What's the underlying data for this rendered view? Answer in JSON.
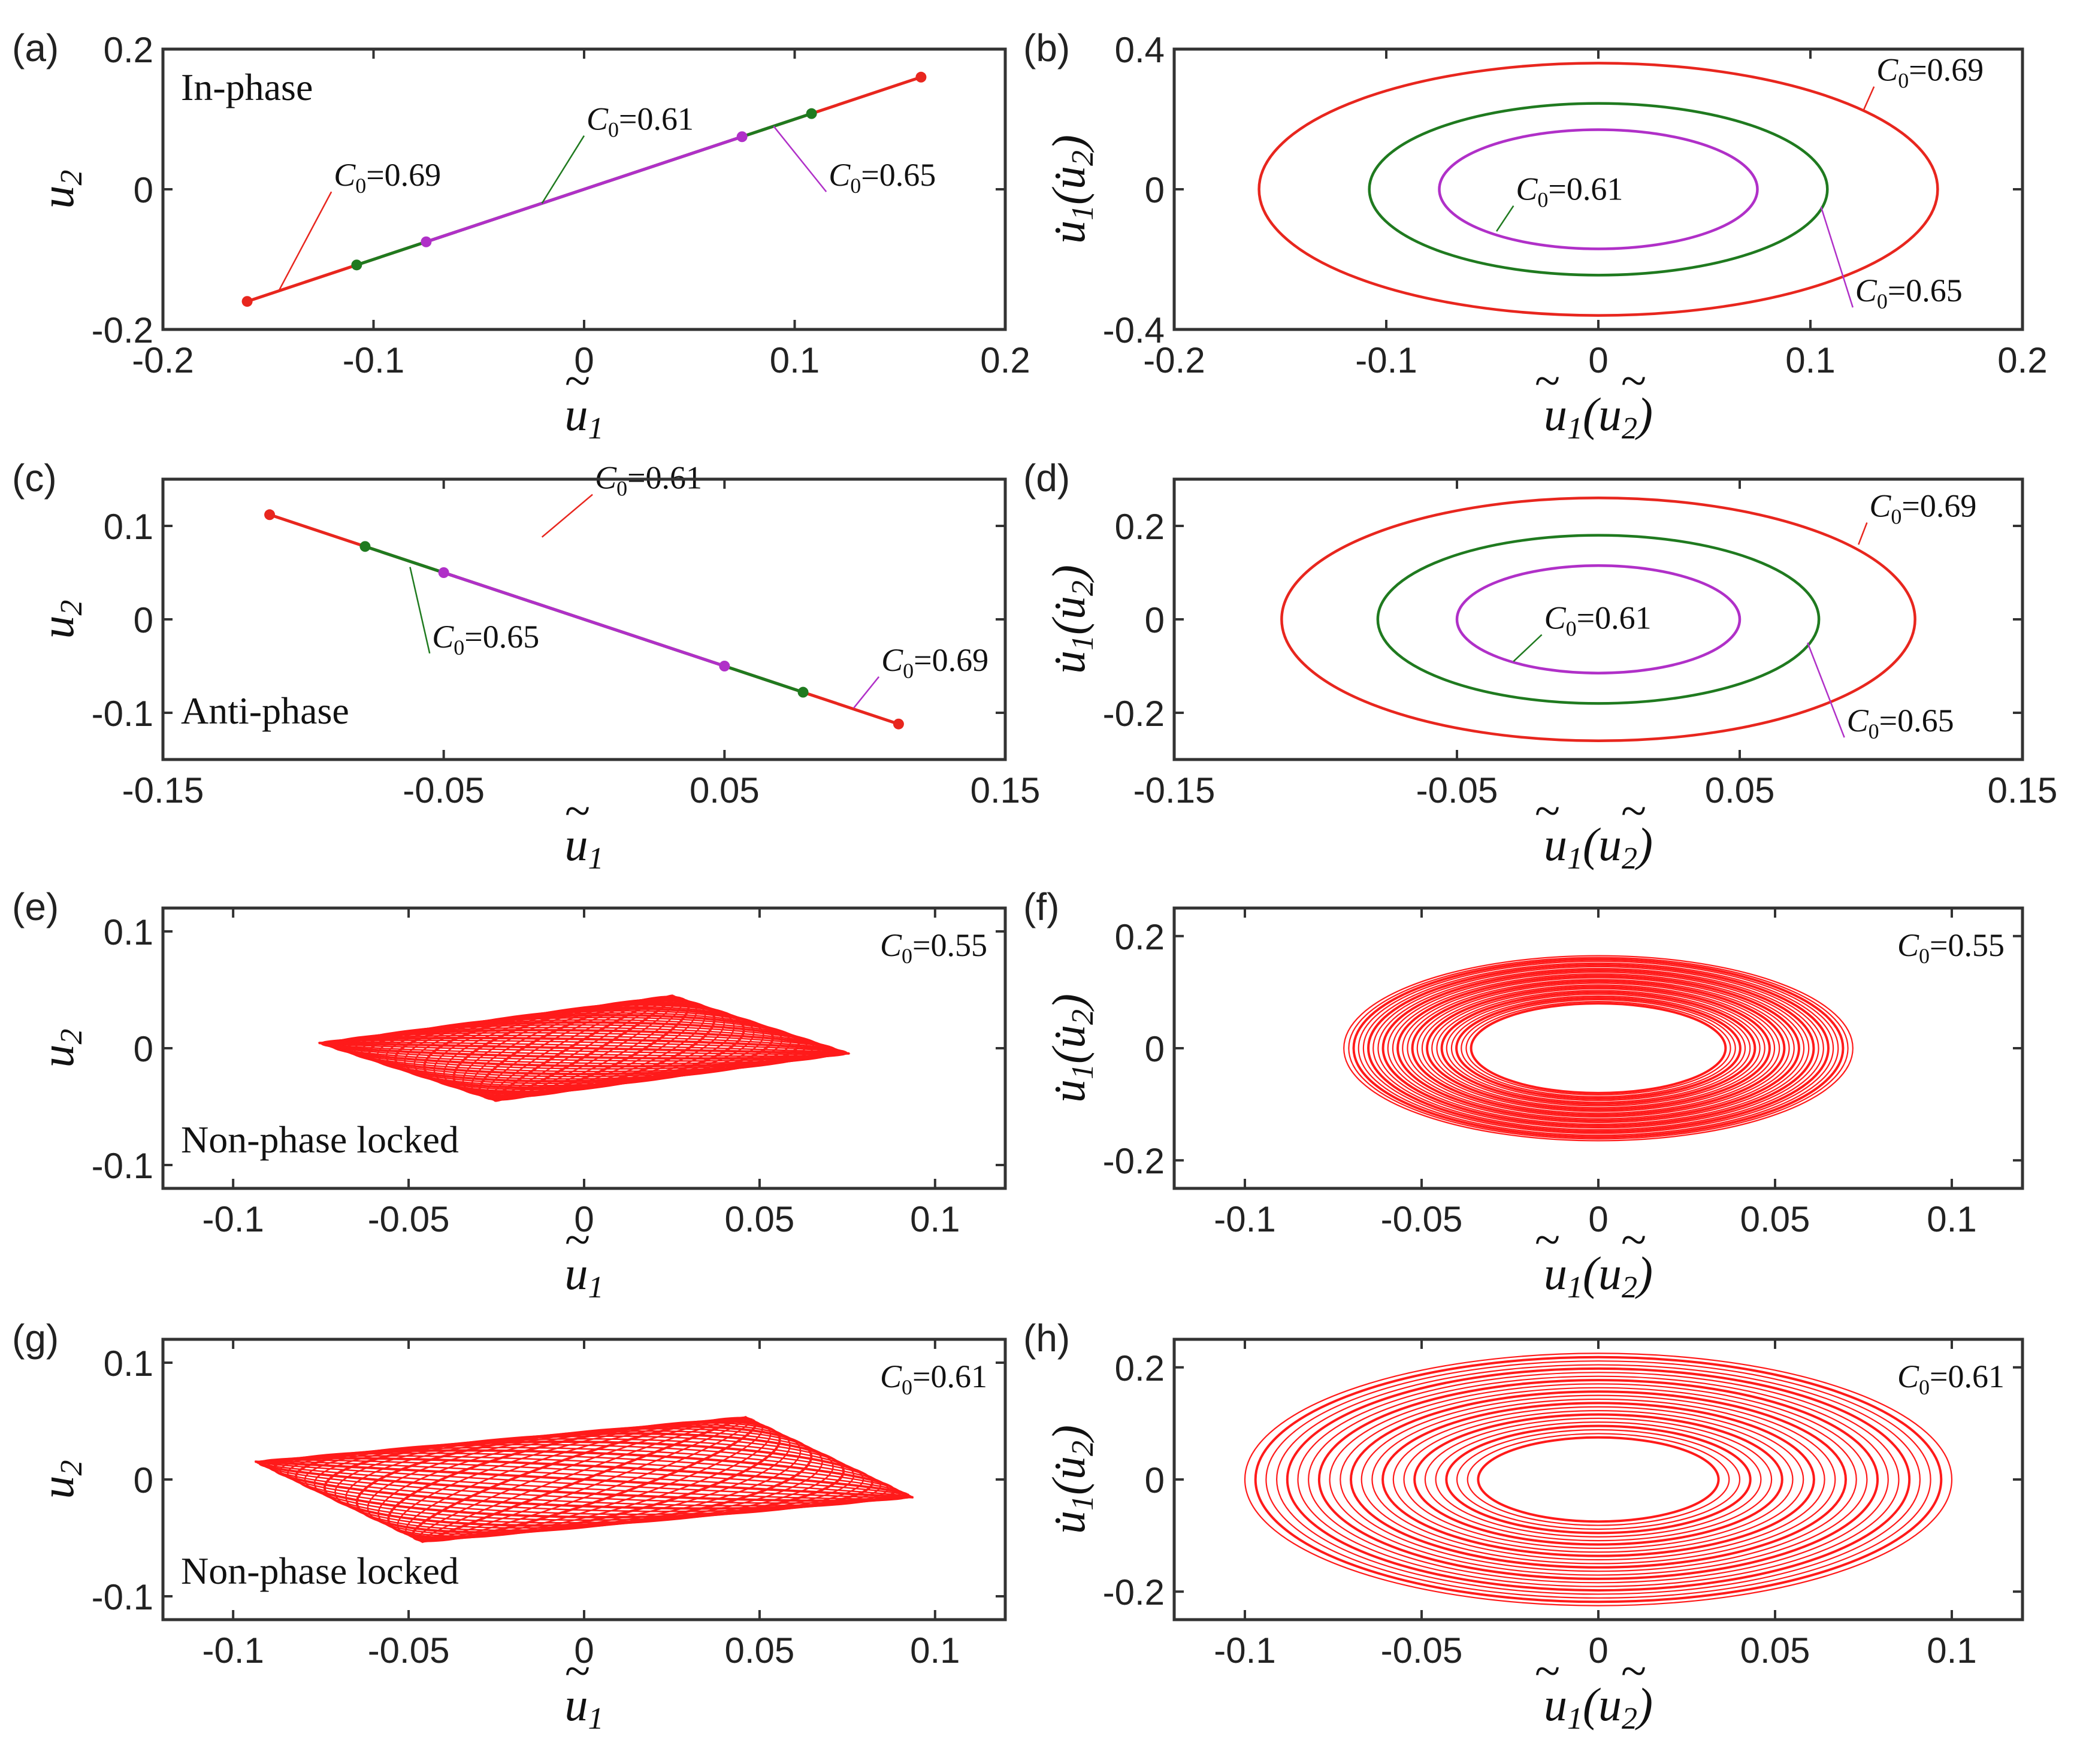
{
  "chart_data": [
    {
      "id": "a",
      "panel_label": "(a)",
      "type": "line",
      "note": "In-phase",
      "xlim": [
        -0.2,
        0.2
      ],
      "ylim": [
        -0.2,
        0.2
      ],
      "xticks": [
        "-0.2",
        "-0.1",
        "0",
        "0.1",
        "0.2"
      ],
      "yticks": [
        "-0.2",
        "0",
        "0.2"
      ],
      "xlabel_var": "u",
      "xlabel_sub": "1",
      "xlabel_paren": "",
      "ylabel_var": "u",
      "ylabel_sub": "2",
      "ylabel_paren": "",
      "series": [
        {
          "label": "C0=0.69",
          "color": "#e8261e",
          "x": [
            -0.16,
            0.16
          ],
          "y": [
            -0.16,
            0.16
          ],
          "markers": true
        },
        {
          "label": "C0=0.65",
          "color": "#1f7a1f",
          "x": [
            -0.108,
            0.108
          ],
          "y": [
            -0.108,
            0.108
          ],
          "markers": true
        },
        {
          "label": "C0=0.61",
          "color": "#b030c8",
          "x": [
            -0.075,
            0.075
          ],
          "y": [
            -0.075,
            0.075
          ],
          "markers": true
        }
      ],
      "annotations": [
        {
          "sym": "C",
          "sub": "0",
          "rest": "=0.69",
          "tx": -0.12,
          "ty": 0.005,
          "px": -0.145,
          "py": -0.145
        },
        {
          "sym": "C",
          "sub": "0",
          "rest": "=0.61",
          "tx": -0.0,
          "ty": 0.085,
          "px": -0.02,
          "py": -0.02
        },
        {
          "sym": "C",
          "sub": "0",
          "rest": "=0.65",
          "tx": 0.115,
          "ty": 0.005,
          "px": 0.09,
          "py": 0.09
        }
      ]
    },
    {
      "id": "b",
      "panel_label": "(b)",
      "type": "line",
      "xlim": [
        -0.2,
        0.2
      ],
      "ylim": [
        -0.4,
        0.4
      ],
      "xticks": [
        "-0.2",
        "-0.1",
        "0",
        "0.1",
        "0.2"
      ],
      "yticks": [
        "-0.4",
        "0",
        "0.4"
      ],
      "xlabel_var": "u",
      "xlabel_sub": "1",
      "xlabel_paren": "u2",
      "ylabel_var": "u̇",
      "ylabel_sub": "1",
      "ylabel_paren": "u̇2",
      "series": [
        {
          "label": "C0=0.69",
          "color": "#e8261e",
          "cx": 0,
          "cy": 0,
          "rx": 0.16,
          "ry": 0.36
        },
        {
          "label": "C0=0.65",
          "color": "#1f7a1f",
          "cx": 0,
          "cy": 0,
          "rx": 0.108,
          "ry": 0.245
        },
        {
          "label": "C0=0.61",
          "color": "#b030c8",
          "cx": 0,
          "cy": 0,
          "rx": 0.075,
          "ry": 0.17
        }
      ],
      "annotations": [
        {
          "sym": "C",
          "sub": "0",
          "rest": "=0.69",
          "tx": 0.13,
          "ty": 0.31,
          "px": 0.125,
          "py": 0.225
        },
        {
          "sym": "C",
          "sub": "0",
          "rest": "=0.61",
          "tx": -0.04,
          "ty": -0.03,
          "px": -0.048,
          "py": -0.12
        },
        {
          "sym": "C",
          "sub": "0",
          "rest": "=0.65",
          "tx": 0.12,
          "ty": -0.32,
          "px": 0.105,
          "py": -0.05
        }
      ]
    },
    {
      "id": "c",
      "panel_label": "(c)",
      "type": "line",
      "note": "Anti-phase",
      "xlim": [
        -0.15,
        0.15
      ],
      "ylim": [
        -0.15,
        0.15
      ],
      "xticks": [
        "-0.15",
        "-0.05",
        "0.05",
        "0.15"
      ],
      "yticks": [
        "-0.1",
        "0",
        "0.1"
      ],
      "xlabel_var": "u",
      "xlabel_sub": "1",
      "xlabel_paren": "",
      "ylabel_var": "u",
      "ylabel_sub": "2",
      "ylabel_paren": "",
      "series": [
        {
          "label": "C0=0.69",
          "color": "#e8261e",
          "x": [
            -0.112,
            0.112
          ],
          "y": [
            0.112,
            -0.112
          ],
          "markers": true
        },
        {
          "label": "C0=0.65",
          "color": "#1f7a1f",
          "x": [
            -0.078,
            0.078
          ],
          "y": [
            0.078,
            -0.078
          ],
          "markers": true
        },
        {
          "label": "C0=0.61",
          "color": "#b030c8",
          "x": [
            -0.05,
            0.05
          ],
          "y": [
            0.05,
            -0.05
          ],
          "markers": true
        }
      ],
      "annotations": [
        {
          "sym": "C",
          "sub": "0",
          "rest": "=0.61",
          "tx": 0.003,
          "ty": 0.14,
          "px": -0.015,
          "py": 0.088
        },
        {
          "sym": "C",
          "sub": "0",
          "rest": "=0.65",
          "tx": -0.055,
          "ty": -0.03,
          "px": -0.062,
          "py": 0.056
        },
        {
          "sym": "C",
          "sub": "0",
          "rest": "=0.69",
          "tx": 0.105,
          "ty": -0.055,
          "px": 0.096,
          "py": -0.095
        }
      ]
    },
    {
      "id": "d",
      "panel_label": "(d)",
      "type": "line",
      "xlim": [
        -0.15,
        0.15
      ],
      "ylim": [
        -0.3,
        0.3
      ],
      "xticks": [
        "-0.15",
        "-0.05",
        "0.05",
        "0.15"
      ],
      "yticks": [
        "-0.2",
        "0",
        "0.2"
      ],
      "xlabel_var": "u",
      "xlabel_sub": "1",
      "xlabel_paren": "u2",
      "ylabel_var": "u̇",
      "ylabel_sub": "1",
      "ylabel_paren": "u̇2",
      "series": [
        {
          "label": "C0=0.69",
          "color": "#e8261e",
          "cx": 0,
          "cy": 0,
          "rx": 0.112,
          "ry": 0.26
        },
        {
          "label": "C0=0.65",
          "color": "#1f7a1f",
          "cx": 0,
          "cy": 0,
          "rx": 0.078,
          "ry": 0.18
        },
        {
          "label": "C0=0.61",
          "color": "#b030c8",
          "cx": 0,
          "cy": 0,
          "rx": 0.05,
          "ry": 0.115
        }
      ],
      "annotations": [
        {
          "sym": "C",
          "sub": "0",
          "rest": "=0.69",
          "tx": 0.095,
          "ty": 0.22,
          "px": 0.092,
          "py": 0.16
        },
        {
          "sym": "C",
          "sub": "0",
          "rest": "=0.61",
          "tx": -0.02,
          "ty": -0.02,
          "px": -0.03,
          "py": -0.09
        },
        {
          "sym": "C",
          "sub": "0",
          "rest": "=0.65",
          "tx": 0.087,
          "ty": -0.24,
          "px": 0.074,
          "py": -0.05
        }
      ]
    },
    {
      "id": "e",
      "panel_label": "(e)",
      "type": "line",
      "note": "Non-phase locked",
      "xlim": [
        -0.12,
        0.12
      ],
      "ylim": [
        -0.12,
        0.12
      ],
      "xticks": [
        "-0.1",
        "-0.05",
        "0",
        "0.05",
        "0.1"
      ],
      "yticks": [
        "-0.1",
        "0",
        "0.1"
      ],
      "xlabel_var": "u",
      "xlabel_sub": "1",
      "xlabel_paren": "",
      "ylabel_var": "u",
      "ylabel_sub": "2",
      "ylabel_paren": "",
      "corner": {
        "sym": "C",
        "sub": "0",
        "rest": "=0.55"
      },
      "series": [
        {
          "label": "C0=0.55",
          "color": "#ff1a1a",
          "family": "lissajous",
          "A": 0.072,
          "B": 0.036,
          "k": 28
        }
      ]
    },
    {
      "id": "f",
      "panel_label": "(f)",
      "type": "line",
      "xlim": [
        -0.12,
        0.12
      ],
      "ylim": [
        -0.25,
        0.25
      ],
      "xticks": [
        "-0.1",
        "-0.05",
        "0",
        "0.05",
        "0.1"
      ],
      "yticks": [
        "-0.2",
        "0",
        "0.2"
      ],
      "xlabel_var": "u",
      "xlabel_sub": "1",
      "xlabel_paren": "u2",
      "ylabel_var": "u̇",
      "ylabel_sub": "1",
      "ylabel_paren": "u̇2",
      "corner": {
        "sym": "C",
        "sub": "0",
        "rest": "=0.55"
      },
      "series": [
        {
          "label": "C0=0.55",
          "color": "#ff1a1a",
          "family": "rings",
          "rx_min": 0.036,
          "rx_max": 0.072,
          "ry_min": 0.08,
          "ry_max": 0.165,
          "k": 26
        }
      ]
    },
    {
      "id": "g",
      "panel_label": "(g)",
      "type": "line",
      "note": "Non-phase locked",
      "xlim": [
        -0.12,
        0.12
      ],
      "ylim": [
        -0.12,
        0.12
      ],
      "xticks": [
        "-0.1",
        "-0.05",
        "0",
        "0.05",
        "0.1"
      ],
      "yticks": [
        "-0.1",
        "0",
        "0.1"
      ],
      "xlabel_var": "u",
      "xlabel_sub": "1",
      "xlabel_paren": "",
      "ylabel_var": "u",
      "ylabel_sub": "2",
      "ylabel_paren": "",
      "corner": {
        "sym": "C",
        "sub": "0",
        "rest": "=0.61"
      },
      "series": [
        {
          "label": "C0=0.61",
          "color": "#ff1a1a",
          "family": "lissajous",
          "A": 0.1,
          "B": 0.034,
          "k": 24
        }
      ]
    },
    {
      "id": "h",
      "panel_label": "(h)",
      "type": "line",
      "xlim": [
        -0.12,
        0.12
      ],
      "ylim": [
        -0.25,
        0.25
      ],
      "xticks": [
        "-0.1",
        "-0.05",
        "0",
        "0.05",
        "0.1"
      ],
      "yticks": [
        "-0.2",
        "0",
        "0.2"
      ],
      "xlabel_var": "u",
      "xlabel_sub": "1",
      "xlabel_paren": "u2",
      "ylabel_var": "u̇",
      "ylabel_sub": "1",
      "ylabel_paren": "u̇2",
      "corner": {
        "sym": "C",
        "sub": "0",
        "rest": "=0.61"
      },
      "series": [
        {
          "label": "C0=0.61",
          "color": "#ff1a1a",
          "family": "rings",
          "rx_min": 0.034,
          "rx_max": 0.1,
          "ry_min": 0.075,
          "ry_max": 0.225,
          "k": 22
        }
      ]
    }
  ]
}
